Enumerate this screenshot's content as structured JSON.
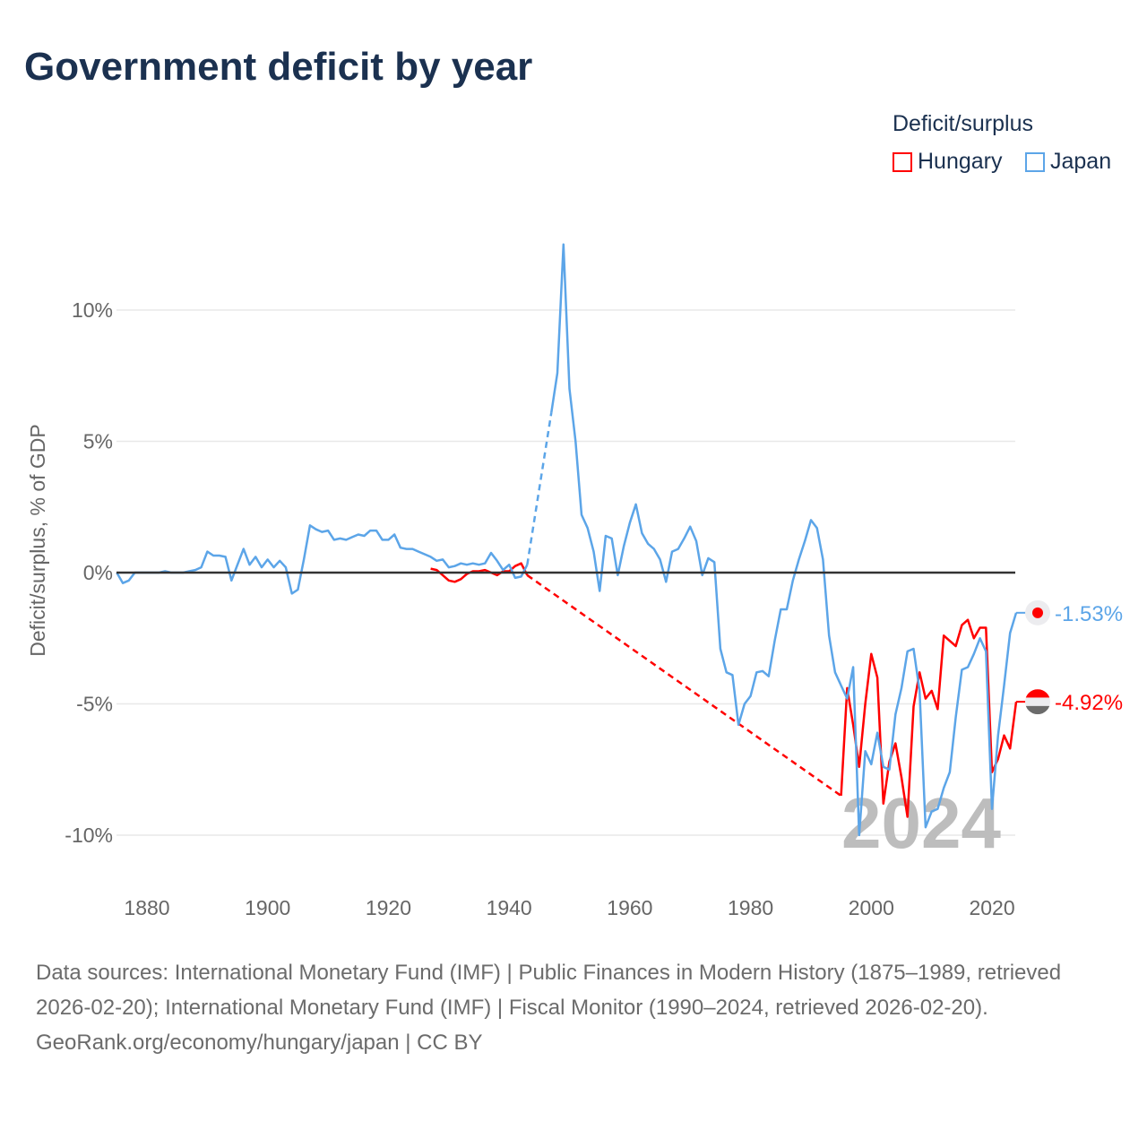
{
  "title": "Government deficit by year",
  "legend": {
    "title": "Deficit/surplus",
    "items": [
      {
        "name": "Hungary",
        "color": "#ff0000"
      },
      {
        "name": "Japan",
        "color": "#5ca5e8"
      }
    ]
  },
  "chart_data": {
    "type": "line",
    "title": "Government deficit by year",
    "ylabel": "Deficit/surplus, % of GDP",
    "xlabel": "",
    "xlim": [
      1875,
      2024
    ],
    "ylim": [
      -11.5,
      13
    ],
    "xticks": [
      "1880",
      "1900",
      "1920",
      "1940",
      "1960",
      "1980",
      "2000",
      "2020"
    ],
    "yticks": [
      {
        "value": 10,
        "label": "10%"
      },
      {
        "value": 5,
        "label": "5%"
      },
      {
        "value": 0,
        "label": "0%"
      },
      {
        "value": -5,
        "label": "-5%"
      },
      {
        "value": -10,
        "label": "-10%"
      }
    ],
    "watermark_year": "2024",
    "series": [
      {
        "name": "Japan",
        "color": "#5ca5e8",
        "end_label": "-1.53%",
        "x": [
          1875,
          1876,
          1877,
          1878,
          1879,
          1880,
          1881,
          1882,
          1883,
          1884,
          1885,
          1886,
          1887,
          1888,
          1889,
          1890,
          1891,
          1892,
          1893,
          1894,
          1895,
          1896,
          1897,
          1898,
          1899,
          1900,
          1901,
          1902,
          1903,
          1904,
          1905,
          1906,
          1907,
          1908,
          1909,
          1910,
          1911,
          1912,
          1913,
          1914,
          1915,
          1916,
          1917,
          1918,
          1919,
          1920,
          1921,
          1922,
          1923,
          1924,
          1925,
          1926,
          1927,
          1928,
          1929,
          1930,
          1931,
          1932,
          1933,
          1934,
          1935,
          1936,
          1937,
          1938,
          1939,
          1940,
          1941,
          1942,
          1943,
          1947,
          1948,
          1949,
          1950,
          1951,
          1952,
          1953,
          1954,
          1955,
          1956,
          1957,
          1958,
          1959,
          1960,
          1961,
          1962,
          1963,
          1964,
          1965,
          1966,
          1967,
          1968,
          1969,
          1970,
          1971,
          1972,
          1973,
          1974,
          1975,
          1976,
          1977,
          1978,
          1979,
          1980,
          1981,
          1982,
          1983,
          1984,
          1985,
          1986,
          1987,
          1988,
          1989,
          1990,
          1991,
          1992,
          1993,
          1994,
          1995,
          1996,
          1997,
          1998,
          1999,
          2000,
          2001,
          2002,
          2003,
          2004,
          2005,
          2006,
          2007,
          2008,
          2009,
          2010,
          2011,
          2012,
          2013,
          2014,
          2015,
          2016,
          2017,
          2018,
          2019,
          2020,
          2021,
          2022,
          2023,
          2024
        ],
        "y": [
          0,
          -0.4,
          -0.3,
          0,
          0,
          0,
          0,
          0,
          0.05,
          0,
          0,
          0,
          0.05,
          0.1,
          0.2,
          0.8,
          0.65,
          0.65,
          0.6,
          -0.3,
          0.3,
          0.9,
          0.3,
          0.6,
          0.2,
          0.5,
          0.2,
          0.45,
          0.2,
          -0.8,
          -0.65,
          0.5,
          1.8,
          1.65,
          1.55,
          1.6,
          1.25,
          1.3,
          1.25,
          1.35,
          1.45,
          1.4,
          1.6,
          1.6,
          1.25,
          1.25,
          1.45,
          0.95,
          0.9,
          0.9,
          0.8,
          0.7,
          0.6,
          0.45,
          0.5,
          0.2,
          0.25,
          0.35,
          0.3,
          0.35,
          0.3,
          0.35,
          0.75,
          0.45,
          0.1,
          0.3,
          -0.2,
          -0.15,
          0.3,
          6.1,
          7.6,
          12.5,
          7.0,
          5.0,
          2.2,
          1.7,
          0.8,
          -0.7,
          1.4,
          1.3,
          -0.1,
          1.0,
          1.9,
          2.6,
          1.5,
          1.1,
          0.9,
          0.5,
          -0.35,
          0.8,
          0.9,
          1.3,
          1.75,
          1.2,
          -0.1,
          0.55,
          0.4,
          -2.9,
          -3.8,
          -3.9,
          -5.8,
          -5.0,
          -4.7,
          -3.8,
          -3.75,
          -3.95,
          -2.6,
          -1.4,
          -1.4,
          -0.3,
          0.5,
          1.2,
          2.0,
          1.7,
          0.5,
          -2.4,
          -3.8,
          -4.3,
          -4.8,
          -3.6,
          -10.0,
          -6.8,
          -7.3,
          -6.1,
          -7.4,
          -7.5,
          -5.4,
          -4.4,
          -3.0,
          -2.9,
          -4.5,
          -9.7,
          -9.1,
          -9.0,
          -8.2,
          -7.6,
          -5.5,
          -3.7,
          -3.6,
          -3.1,
          -2.5,
          -3.0,
          -9.0,
          -6.2,
          -4.3,
          -2.3,
          -1.53
        ]
      },
      {
        "name": "Hungary",
        "color": "#ff0000",
        "end_label": "-4.92%",
        "x": [
          1927,
          1928,
          1929,
          1930,
          1931,
          1932,
          1933,
          1934,
          1935,
          1936,
          1937,
          1938,
          1939,
          1940,
          1941,
          1942,
          1943,
          1995,
          1996,
          1997,
          1998,
          1999,
          2000,
          2001,
          2002,
          2003,
          2004,
          2005,
          2006,
          2007,
          2008,
          2009,
          2010,
          2011,
          2012,
          2013,
          2014,
          2015,
          2016,
          2017,
          2018,
          2019,
          2020,
          2021,
          2022,
          2023,
          2024
        ],
        "y": [
          0.15,
          0.1,
          -0.1,
          -0.3,
          -0.35,
          -0.25,
          -0.05,
          0.05,
          0.05,
          0.1,
          0,
          -0.1,
          0.05,
          0.05,
          0.25,
          0.35,
          -0.1,
          -8.5,
          -4.4,
          -5.8,
          -7.4,
          -5.0,
          -3.1,
          -4.0,
          -8.8,
          -7.2,
          -6.5,
          -7.8,
          -9.3,
          -5.1,
          -3.8,
          -4.8,
          -4.5,
          -5.2,
          -2.4,
          -2.6,
          -2.8,
          -2.0,
          -1.8,
          -2.5,
          -2.1,
          -2.1,
          -7.6,
          -7.1,
          -6.2,
          -6.7,
          -4.92
        ]
      }
    ]
  },
  "footer": {
    "sources": "Data sources: International Monetary Fund (IMF) | Public Finances in Modern History (1875–1989, retrieved 2026-02-20); International Monetary Fund (IMF) | Fiscal Monitor (1990–2024, retrieved 2026-02-20).",
    "credit": "GeoRank.org/economy/hungary/japan | CC BY"
  }
}
